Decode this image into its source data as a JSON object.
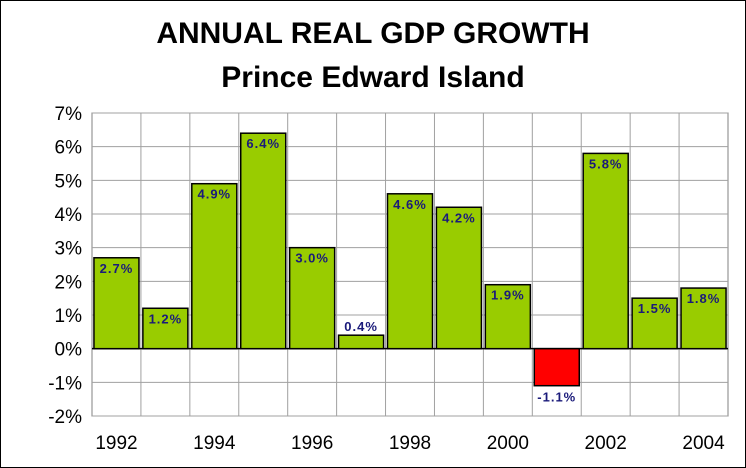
{
  "chart_data": {
    "type": "bar",
    "title": "ANNUAL REAL GDP GROWTH",
    "subtitle": "Prince Edward Island",
    "xlabel": "",
    "ylabel": "",
    "ylim": [
      -2,
      7
    ],
    "y_ticks": [
      "7%",
      "6%",
      "5%",
      "4%",
      "3%",
      "2%",
      "1%",
      "0%",
      "-1%",
      "-2%"
    ],
    "y_tick_values": [
      7,
      6,
      5,
      4,
      3,
      2,
      1,
      0,
      -1,
      -2
    ],
    "categories": [
      "1992",
      "1993",
      "1994",
      "1995",
      "1996",
      "1997",
      "1998",
      "1999",
      "2000",
      "2001",
      "2002",
      "2003",
      "2004"
    ],
    "x_tick_labels": [
      "1992",
      "",
      "1994",
      "",
      "1996",
      "",
      "1998",
      "",
      "2000",
      "",
      "2002",
      "",
      "2004"
    ],
    "values": [
      2.7,
      1.2,
      4.9,
      6.4,
      3.0,
      0.4,
      4.6,
      4.2,
      1.9,
      -1.1,
      5.8,
      1.5,
      1.8
    ],
    "data_labels": [
      "2.7%",
      "1.2%",
      "4.9%",
      "6.4%",
      "3.0%",
      "0.4%",
      "4.6%",
      "4.2%",
      "1.9%",
      "-1.1%",
      "5.8%",
      "1.5%",
      "1.8%"
    ],
    "grid": true,
    "legend": "none",
    "colors": {
      "positive": "#99cc00",
      "negative": "#ff0000",
      "label": "#1a1a7a"
    }
  }
}
